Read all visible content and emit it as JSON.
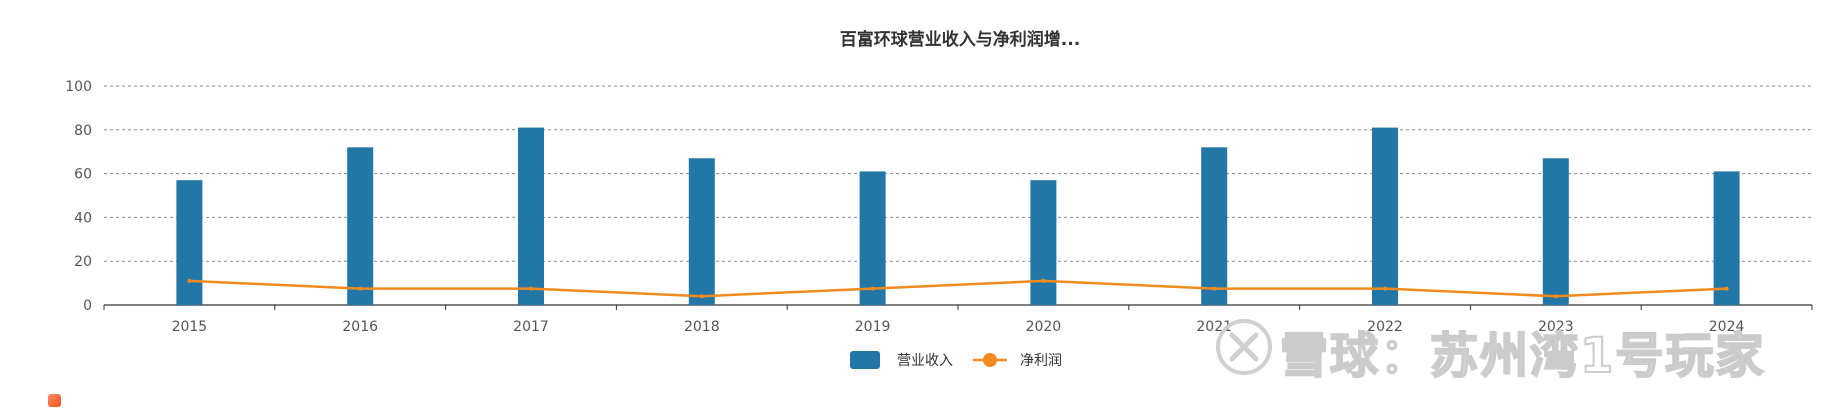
{
  "chart_data": {
    "type": "bar",
    "title": "百富环球营业收入与净利润增...",
    "categories": [
      "2015",
      "2016",
      "2017",
      "2018",
      "2019",
      "2020",
      "2021",
      "2022",
      "2023",
      "2024"
    ],
    "ylim": [
      0,
      100
    ],
    "yticks": [
      0,
      20,
      40,
      60,
      80,
      100
    ],
    "grid": true,
    "legend_position": "bottom-center",
    "series": [
      {
        "name": "营业收入",
        "type": "bar",
        "color": "#2277a6",
        "values": [
          57,
          72,
          81,
          67,
          61,
          57,
          72,
          81,
          67,
          61
        ]
      },
      {
        "name": "净利润",
        "type": "line",
        "color": "#f28a1e",
        "values": [
          11,
          7.5,
          7.5,
          4,
          7.5,
          11,
          7.5,
          7.5,
          4,
          7.5
        ]
      }
    ]
  },
  "watermark": {
    "text": "雪球：苏州湾1号玩家"
  }
}
